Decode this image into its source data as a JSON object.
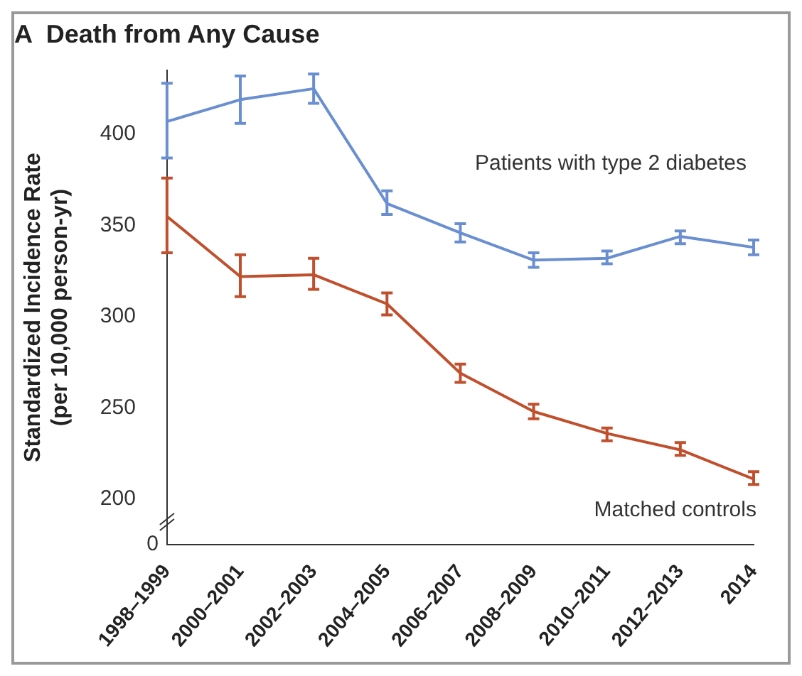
{
  "chart_data": {
    "type": "line",
    "title": "A  Death from Any Cause",
    "ylabel": "Standardized Incidence Rate\n(per 10,000 person-yr)",
    "categories": [
      "1998–1999",
      "2000–2001",
      "2002–2003",
      "2004–2005",
      "2006–2007",
      "2008–2009",
      "2010–2011",
      "2012–2013",
      "2014"
    ],
    "series": [
      {
        "name": "Patients with type 2 diabetes",
        "color": "#6a8fd0",
        "values": [
          407,
          419,
          425,
          362,
          346,
          331,
          332,
          344,
          338
        ],
        "errors": [
          [
            387,
            428
          ],
          [
            406,
            432
          ],
          [
            417,
            433
          ],
          [
            356,
            369
          ],
          [
            341,
            351
          ],
          [
            327,
            335
          ],
          [
            329,
            336
          ],
          [
            340,
            347
          ],
          [
            334,
            342
          ]
        ]
      },
      {
        "name": "Matched controls",
        "color": "#c0502d",
        "values": [
          355,
          322,
          323,
          307,
          269,
          248,
          236,
          227,
          211
        ],
        "errors": [
          [
            335,
            376
          ],
          [
            311,
            334
          ],
          [
            315,
            332
          ],
          [
            301,
            313
          ],
          [
            264,
            274
          ],
          [
            244,
            252
          ],
          [
            232,
            239
          ],
          [
            224,
            231
          ],
          [
            208,
            215
          ]
        ]
      }
    ],
    "ylim": [
      175,
      435
    ],
    "yticks": [
      200,
      250,
      300,
      350,
      400
    ],
    "annotations": [
      "0"
    ],
    "grid": false,
    "legend": false,
    "line_style": "solid"
  }
}
